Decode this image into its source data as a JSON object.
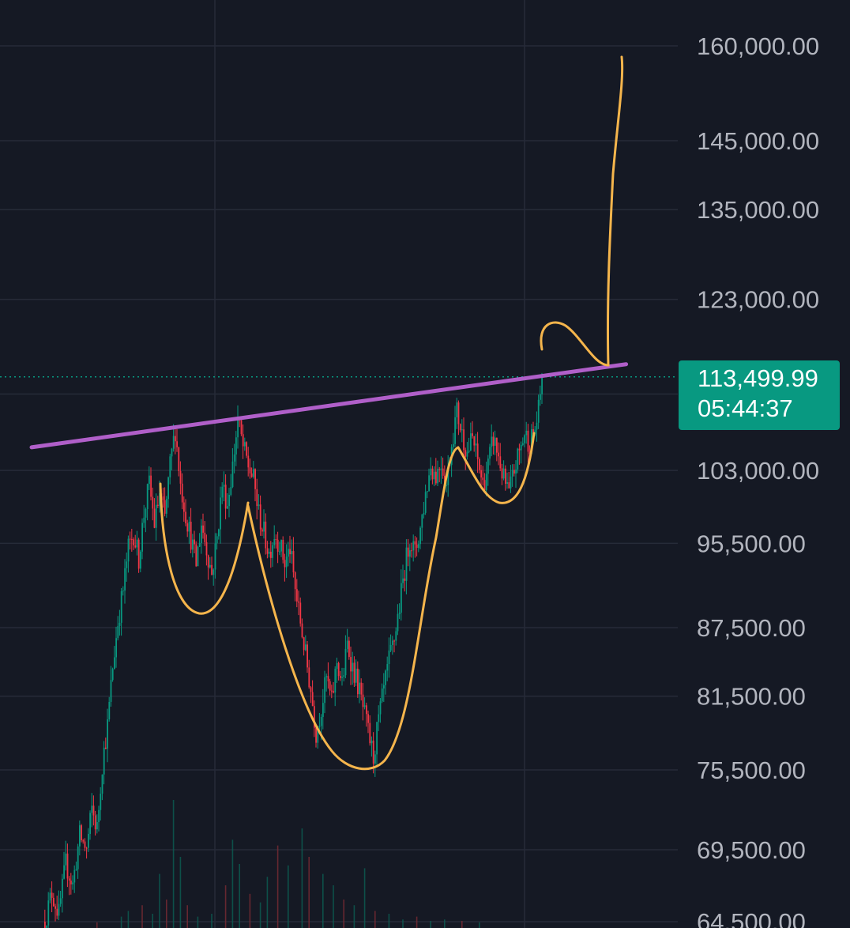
{
  "chart_data": {
    "type": "candlestick",
    "y_scale": "log",
    "ylim": [
      64500,
      160000
    ],
    "y_ticks": [
      "160,000.00",
      "145,000.00",
      "135,000.00",
      "123,000.00",
      "103,000.00",
      "95,500.00",
      "87,500.00",
      "81,500.00",
      "75,500.00",
      "69,500.00",
      "64,500.00"
    ],
    "y_tick_values": [
      160000,
      145000,
      135000,
      123000,
      103000,
      95500,
      87500,
      81500,
      75500,
      69500,
      64500
    ],
    "current_price": {
      "value": 113499.99,
      "label": "113,499.99",
      "countdown": "05:44:37"
    },
    "path_points": [
      [
        0,
        64500
      ],
      [
        4,
        66500
      ],
      [
        8,
        65000
      ],
      [
        12,
        68500
      ],
      [
        16,
        67000
      ],
      [
        20,
        70500
      ],
      [
        24,
        69500
      ],
      [
        27,
        72500
      ],
      [
        30,
        71000
      ],
      [
        33,
        76000
      ],
      [
        36,
        79000
      ],
      [
        39,
        84000
      ],
      [
        42,
        88000
      ],
      [
        45,
        91000
      ],
      [
        48,
        95000
      ],
      [
        51,
        96500
      ],
      [
        54,
        94000
      ],
      [
        57,
        98500
      ],
      [
        60,
        101500
      ],
      [
        63,
        97500
      ],
      [
        66,
        100500
      ],
      [
        69,
        98000
      ],
      [
        72,
        103500
      ],
      [
        75,
        107500
      ],
      [
        78,
        101500
      ],
      [
        81,
        98500
      ],
      [
        84,
        96000
      ],
      [
        87,
        93500
      ],
      [
        90,
        97500
      ],
      [
        93,
        95000
      ],
      [
        96,
        92500
      ],
      [
        99,
        96000
      ],
      [
        102,
        101500
      ],
      [
        105,
        99500
      ],
      [
        108,
        103500
      ],
      [
        111,
        108500
      ],
      [
        114,
        105500
      ],
      [
        117,
        103500
      ],
      [
        120,
        102000
      ],
      [
        123,
        98500
      ],
      [
        126,
        96500
      ],
      [
        129,
        94500
      ],
      [
        132,
        96500
      ],
      [
        135,
        95500
      ],
      [
        138,
        93500
      ],
      [
        141,
        95000
      ],
      [
        144,
        91000
      ],
      [
        147,
        88000
      ],
      [
        150,
        85000
      ],
      [
        153,
        82000
      ],
      [
        156,
        78500
      ],
      [
        159,
        80500
      ],
      [
        162,
        83000
      ],
      [
        165,
        81000
      ],
      [
        168,
        84500
      ],
      [
        171,
        82500
      ],
      [
        174,
        86000
      ],
      [
        177,
        84000
      ],
      [
        180,
        82500
      ],
      [
        183,
        80500
      ],
      [
        186,
        78500
      ],
      [
        189,
        76500
      ],
      [
        192,
        79500
      ],
      [
        195,
        82000
      ],
      [
        198,
        84500
      ],
      [
        201,
        86500
      ],
      [
        204,
        89500
      ],
      [
        207,
        93000
      ],
      [
        210,
        96000
      ],
      [
        213,
        94500
      ],
      [
        216,
        97000
      ],
      [
        219,
        100500
      ],
      [
        222,
        103500
      ],
      [
        225,
        102500
      ],
      [
        228,
        104000
      ],
      [
        231,
        101500
      ],
      [
        234,
        106000
      ],
      [
        237,
        109500
      ],
      [
        240,
        107000
      ],
      [
        243,
        105000
      ],
      [
        246,
        106500
      ],
      [
        249,
        104000
      ],
      [
        252,
        101500
      ],
      [
        255,
        103500
      ],
      [
        258,
        106500
      ],
      [
        261,
        104500
      ],
      [
        264,
        102000
      ],
      [
        267,
        100500
      ],
      [
        270,
        103000
      ],
      [
        273,
        105000
      ],
      [
        276,
        107000
      ],
      [
        279,
        106000
      ],
      [
        282,
        107500
      ],
      [
        284,
        109500
      ],
      [
        286,
        113500
      ]
    ],
    "volume_bars": [
      [
        30,
        0.04
      ],
      [
        44,
        0.08
      ],
      [
        48,
        0.12
      ],
      [
        56,
        0.16
      ],
      [
        62,
        0.1
      ],
      [
        66,
        0.38
      ],
      [
        70,
        0.2
      ],
      [
        74,
        0.9
      ],
      [
        78,
        0.5
      ],
      [
        82,
        0.16
      ],
      [
        88,
        0.08
      ],
      [
        96,
        0.1
      ],
      [
        104,
        0.3
      ],
      [
        108,
        0.62
      ],
      [
        112,
        0.45
      ],
      [
        118,
        0.24
      ],
      [
        124,
        0.18
      ],
      [
        128,
        0.36
      ],
      [
        134,
        0.58
      ],
      [
        140,
        0.44
      ],
      [
        148,
        0.7
      ],
      [
        152,
        0.5
      ],
      [
        160,
        0.38
      ],
      [
        166,
        0.3
      ],
      [
        172,
        0.2
      ],
      [
        178,
        0.16
      ],
      [
        184,
        0.42
      ],
      [
        190,
        0.12
      ],
      [
        198,
        0.1
      ],
      [
        206,
        0.06
      ],
      [
        214,
        0.08
      ],
      [
        222,
        0.05
      ],
      [
        230,
        0.06
      ],
      [
        240,
        0.05
      ],
      [
        250,
        0.04
      ]
    ]
  },
  "annotations": {
    "resistance_line": {
      "color": "#b05fc9",
      "from": [
        0,
        105500
      ],
      "to": [
        313,
        115000
      ]
    },
    "pattern_curve_color": "#f5b54c"
  },
  "colors": {
    "background": "#151924",
    "grid": "#262b38",
    "up": "#089981",
    "down": "#f23645",
    "axis_text": "#b2b5be",
    "price_badge": "#089981"
  }
}
